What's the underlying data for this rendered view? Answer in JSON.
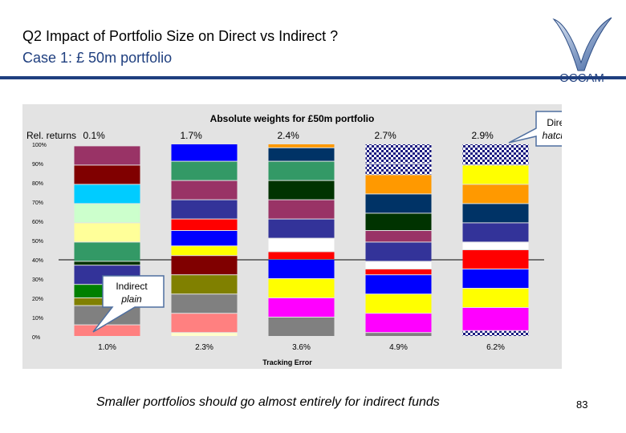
{
  "slide": {
    "title": "Q2 Impact of Portfolio Size on Direct vs Indirect ?",
    "subtitle": "Case 1: £ 50m portfolio",
    "footer": "Smaller portfolios should go almost entirely for indirect funds",
    "page_number": "83",
    "logo_text": "OCCAM",
    "accent_color": "#1f3f7f"
  },
  "chart_data": {
    "type": "bar",
    "stacked": true,
    "title": "Absolute weights for £50m portfolio",
    "xlabel": "Tracking Error",
    "ylabel": "",
    "ylim": [
      0,
      100
    ],
    "ytick_labels": [
      "0%",
      "10%",
      "20%",
      "30%",
      "40%",
      "50%",
      "60%",
      "70%",
      "80%",
      "90%",
      "100%"
    ],
    "reference_line": 40,
    "rel_returns_label": "Rel. returns",
    "categories": [
      "1.0%",
      "2.3%",
      "3.6%",
      "4.9%",
      "6.2%"
    ],
    "rel_returns": [
      "0.1%",
      "1.7%",
      "2.4%",
      "2.7%",
      "2.9%"
    ],
    "bars": [
      {
        "segments": [
          {
            "value": 6,
            "color": "#ff8080",
            "hatched": false
          },
          {
            "value": 10,
            "color": "#808080",
            "hatched": false
          },
          {
            "value": 4,
            "color": "#808000",
            "hatched": false
          },
          {
            "value": 7,
            "color": "#008000",
            "hatched": false
          },
          {
            "value": 10,
            "color": "#333399",
            "hatched": false
          },
          {
            "value": 2,
            "color": "#003300",
            "hatched": false
          },
          {
            "value": 10,
            "color": "#339966",
            "hatched": false
          },
          {
            "value": 10,
            "color": "#ffff99",
            "hatched": false
          },
          {
            "value": 10,
            "color": "#ccffcc",
            "hatched": false
          },
          {
            "value": 10,
            "color": "#00ccff",
            "hatched": false
          },
          {
            "value": 10,
            "color": "#800000",
            "hatched": false
          },
          {
            "value": 10,
            "color": "#993366",
            "hatched": false
          }
        ]
      },
      {
        "segments": [
          {
            "value": 2,
            "color": "#ffffcc",
            "hatched": false
          },
          {
            "value": 10,
            "color": "#ff8080",
            "hatched": false
          },
          {
            "value": 10,
            "color": "#808080",
            "hatched": false
          },
          {
            "value": 10,
            "color": "#808000",
            "hatched": false
          },
          {
            "value": 10,
            "color": "#800000",
            "hatched": false
          },
          {
            "value": 5,
            "color": "#ffff00",
            "hatched": false
          },
          {
            "value": 8,
            "color": "#0000ff",
            "hatched": false
          },
          {
            "value": 6,
            "color": "#ff0000",
            "hatched": false
          },
          {
            "value": 10,
            "color": "#333399",
            "hatched": false
          },
          {
            "value": 10,
            "color": "#993366",
            "hatched": false
          },
          {
            "value": 10,
            "color": "#339966",
            "hatched": false
          },
          {
            "value": 9,
            "color": "#0000ff",
            "hatched": false
          }
        ]
      },
      {
        "segments": [
          {
            "value": 10,
            "color": "#808080",
            "hatched": false
          },
          {
            "value": 10,
            "color": "#ff00ff",
            "hatched": false
          },
          {
            "value": 10,
            "color": "#ffff00",
            "hatched": false
          },
          {
            "value": 10,
            "color": "#0000ff",
            "hatched": false
          },
          {
            "value": 4,
            "color": "#ff0000",
            "hatched": false
          },
          {
            "value": 7,
            "color": "#ffffff",
            "hatched": false
          },
          {
            "value": 10,
            "color": "#333399",
            "hatched": false
          },
          {
            "value": 10,
            "color": "#993366",
            "hatched": false
          },
          {
            "value": 10,
            "color": "#003300",
            "hatched": false
          },
          {
            "value": 10,
            "color": "#339966",
            "hatched": false
          },
          {
            "value": 7,
            "color": "#003366",
            "hatched": false
          },
          {
            "value": 2,
            "color": "#ff9900",
            "hatched": false
          }
        ]
      },
      {
        "segments": [
          {
            "value": 2,
            "color": "#808080",
            "hatched": false
          },
          {
            "value": 10,
            "color": "#ff00ff",
            "hatched": false
          },
          {
            "value": 10,
            "color": "#ffff00",
            "hatched": false
          },
          {
            "value": 10,
            "color": "#0000ff",
            "hatched": false
          },
          {
            "value": 3,
            "color": "#ff0000",
            "hatched": false
          },
          {
            "value": 4,
            "color": "#ffffff",
            "hatched": false
          },
          {
            "value": 10,
            "color": "#333399",
            "hatched": false
          },
          {
            "value": 6,
            "color": "#993366",
            "hatched": false
          },
          {
            "value": 9,
            "color": "#003300",
            "hatched": false
          },
          {
            "value": 10,
            "color": "#003366",
            "hatched": false
          },
          {
            "value": 10,
            "color": "#ff9900",
            "hatched": false
          },
          {
            "value": 6,
            "color": "#ffff00",
            "hatched": true
          },
          {
            "value": 10,
            "color": "#000080",
            "hatched": true
          }
        ]
      },
      {
        "segments": [
          {
            "value": 3,
            "color": "#ff00ff",
            "hatched": true
          },
          {
            "value": 12,
            "color": "#ff00ff",
            "hatched": false
          },
          {
            "value": 10,
            "color": "#ffff00",
            "hatched": false
          },
          {
            "value": 10,
            "color": "#0000ff",
            "hatched": false
          },
          {
            "value": 10,
            "color": "#ff0000",
            "hatched": false
          },
          {
            "value": 4,
            "color": "#ffffff",
            "hatched": false
          },
          {
            "value": 10,
            "color": "#333399",
            "hatched": false
          },
          {
            "value": 10,
            "color": "#003366",
            "hatched": false
          },
          {
            "value": 10,
            "color": "#ff9900",
            "hatched": false
          },
          {
            "value": 10,
            "color": "#ffff00",
            "hatched": false
          },
          {
            "value": 11,
            "color": "#ffff00",
            "hatched": true
          }
        ]
      }
    ],
    "annotations": {
      "direct": {
        "line1": "Direct",
        "line2": "hatched"
      },
      "indirect": {
        "line1": "Indirect",
        "line2": "plain"
      }
    }
  }
}
